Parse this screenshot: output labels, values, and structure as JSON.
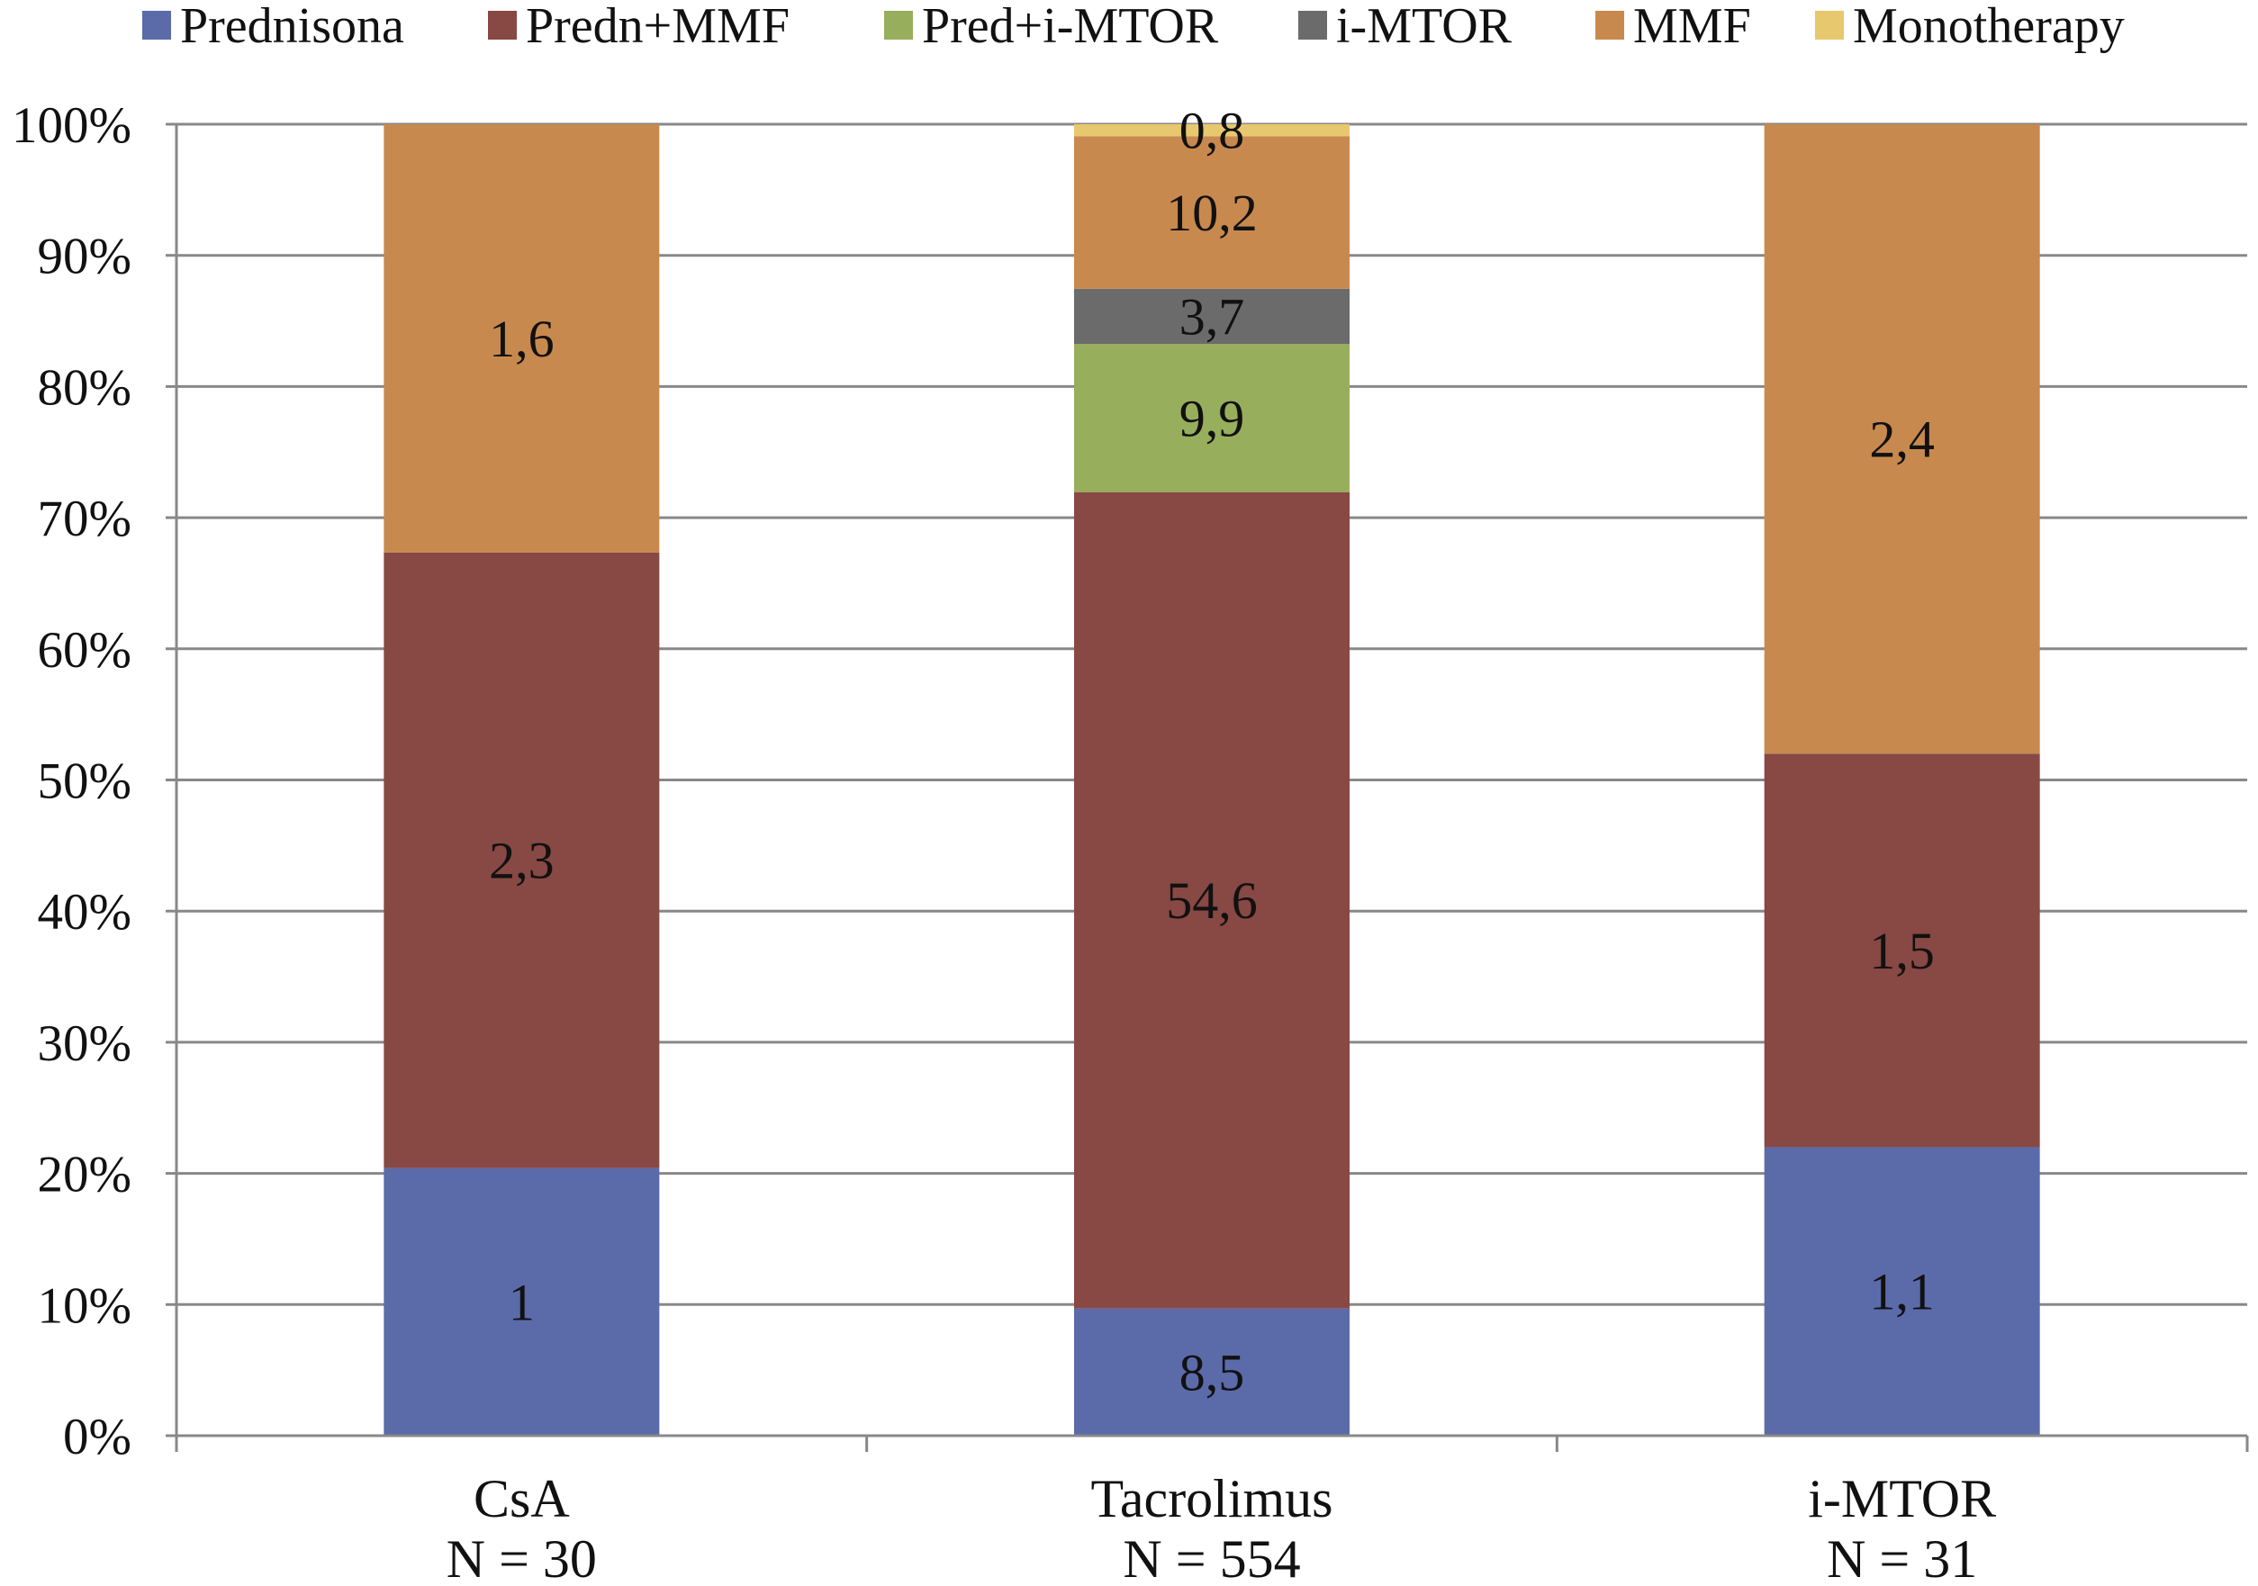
{
  "chart_data": {
    "type": "bar",
    "stacked": true,
    "normalized_percent": true,
    "categories": [
      "CsA",
      "Tacrolimus",
      "i-MTOR"
    ],
    "category_sublabels": [
      "N = 30",
      "N = 554",
      "N = 31"
    ],
    "series": [
      {
        "name": "Prednisona",
        "color": "#5b6aa9",
        "values": [
          1,
          8.5,
          1.1
        ]
      },
      {
        "name": "Predn+MMF",
        "color": "#884843",
        "values": [
          2.3,
          54.6,
          1.5
        ]
      },
      {
        "name": "Pred+i-MTOR",
        "color": "#97ae5c",
        "values": [
          0,
          9.9,
          0
        ]
      },
      {
        "name": "i-MTOR",
        "color": "#6b6b6b",
        "values": [
          0,
          3.7,
          0
        ]
      },
      {
        "name": "MMF",
        "color": "#c8894e",
        "values": [
          1.6,
          10.2,
          2.4
        ]
      },
      {
        "name": "Monotherapy",
        "color": "#e8c86e",
        "values": [
          0,
          0.8,
          0
        ]
      }
    ],
    "data_labels": [
      [
        "1",
        "8,5",
        "1,1"
      ],
      [
        "2,3",
        "54,6",
        "1,5"
      ],
      [
        "",
        "9,9",
        ""
      ],
      [
        "",
        "3,7",
        ""
      ],
      [
        "1,6",
        "10,2",
        "2,4"
      ],
      [
        "",
        "0,8",
        ""
      ]
    ],
    "y_ticks": [
      "0%",
      "10%",
      "20%",
      "30%",
      "40%",
      "50%",
      "60%",
      "70%",
      "80%",
      "90%",
      "100%"
    ],
    "ylim": [
      0,
      100
    ],
    "grid": true,
    "legend_position": "top"
  }
}
